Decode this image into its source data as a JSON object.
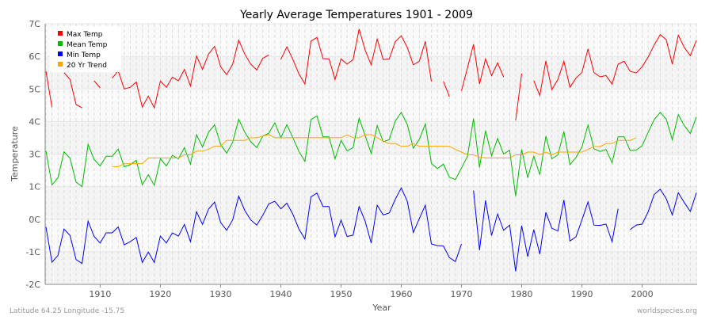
{
  "chart_data": {
    "type": "line",
    "title": "Yearly Average Temperatures 1901 - 2009",
    "xlabel": "Year",
    "ylabel": "Temperature",
    "xlim": [
      1901,
      2009
    ],
    "x_ticks": [
      1910,
      1920,
      1930,
      1940,
      1950,
      1960,
      1970,
      1980,
      1990,
      2000
    ],
    "y_ticks": [
      7,
      6,
      5,
      4,
      3,
      1,
      0,
      -1,
      -2
    ],
    "y_tick_labels": [
      "7C",
      "6C",
      "5C",
      "4C",
      "3C",
      "1C",
      "0C",
      "-1C",
      "-2C"
    ],
    "grid": true,
    "legend_position": "top-left",
    "series": [
      {
        "name": "Max Temp",
        "color": "#ff0000",
        "start_year": 1901,
        "values": [
          5.54,
          4.44,
          null,
          5.5,
          5.29,
          4.52,
          4.42,
          null,
          5.25,
          5.03,
          null,
          5.33,
          5.55,
          5.0,
          5.05,
          5.21,
          4.44,
          4.78,
          4.42,
          5.24,
          5.05,
          5.36,
          5.25,
          5.6,
          5.09,
          6.01,
          5.6,
          6.07,
          6.31,
          5.68,
          5.44,
          5.76,
          6.5,
          6.07,
          5.76,
          5.58,
          5.94,
          6.04,
          null,
          5.9,
          6.29,
          5.9,
          5.46,
          5.15,
          6.47,
          6.58,
          5.93,
          5.92,
          5.29,
          5.92,
          5.76,
          5.9,
          6.84,
          6.19,
          5.74,
          6.53,
          5.9,
          5.92,
          6.45,
          6.63,
          6.27,
          5.74,
          5.85,
          6.46,
          5.23,
          null,
          5.23,
          4.76,
          null,
          4.94,
          5.65,
          6.37,
          5.15,
          5.92,
          5.41,
          5.8,
          5.36,
          null,
          4.03,
          5.47,
          null,
          5.25,
          4.8,
          5.86,
          4.98,
          5.29,
          5.85,
          5.05,
          5.33,
          5.51,
          6.23,
          5.5,
          5.37,
          5.41,
          5.15,
          5.76,
          5.85,
          5.54,
          5.49,
          5.68,
          5.98,
          6.35,
          6.67,
          6.51,
          5.76,
          6.65,
          6.27,
          6.02,
          6.49
        ]
      },
      {
        "name": "Mean Temp",
        "color": "#00bb00",
        "start_year": 1901,
        "values": [
          3.1,
          1.11,
          1.54,
          3.07,
          2.74,
          1.28,
          1.0,
          3.3,
          2.67,
          2.27,
          2.87,
          2.87,
          3.15,
          2.22,
          2.35,
          2.62,
          1.11,
          1.73,
          1.08,
          2.71,
          2.27,
          2.92,
          2.71,
          3.2,
          2.38,
          3.59,
          3.22,
          3.67,
          3.9,
          3.29,
          3.03,
          3.36,
          4.07,
          3.67,
          3.38,
          3.2,
          3.55,
          3.64,
          3.96,
          3.5,
          3.9,
          3.5,
          3.08,
          2.55,
          4.06,
          4.17,
          3.53,
          3.53,
          2.71,
          3.42,
          3.1,
          3.2,
          4.1,
          3.57,
          3.02,
          3.87,
          3.38,
          3.44,
          4.01,
          4.28,
          3.91,
          3.18,
          3.45,
          3.93,
          2.43,
          2.11,
          2.38,
          1.57,
          1.44,
          2.14,
          2.87,
          4.09,
          2.17,
          3.72,
          2.9,
          3.48,
          3.0,
          3.12,
          0.71,
          3.14,
          1.54,
          2.87,
          1.73,
          3.55,
          2.71,
          2.95,
          3.69,
          2.35,
          2.79,
          3.22,
          3.89,
          3.16,
          3.08,
          3.14,
          2.46,
          3.53,
          3.53,
          3.11,
          3.12,
          3.26,
          3.67,
          4.06,
          4.28,
          4.07,
          3.44,
          4.21,
          3.87,
          3.63,
          4.14
        ]
      },
      {
        "name": "Min Temp",
        "color": "#0000ff",
        "start_year": 1901,
        "values": [
          -0.24,
          -1.32,
          -1.11,
          -0.3,
          -0.5,
          -1.24,
          -1.36,
          -0.06,
          -0.53,
          -0.73,
          -0.42,
          -0.42,
          -0.24,
          -0.79,
          -0.69,
          -0.56,
          -1.33,
          -1.01,
          -1.33,
          -0.52,
          -0.73,
          -0.42,
          -0.52,
          -0.16,
          -0.69,
          0.23,
          -0.16,
          0.31,
          0.53,
          -0.1,
          -0.34,
          -0.02,
          0.71,
          0.27,
          -0.02,
          -0.18,
          0.12,
          0.47,
          0.55,
          0.32,
          0.49,
          0.15,
          -0.3,
          -0.61,
          0.69,
          0.8,
          0.39,
          0.39,
          -0.54,
          -0.03,
          -0.53,
          -0.49,
          0.39,
          -0.06,
          -0.73,
          0.43,
          0.13,
          0.19,
          0.61,
          0.96,
          0.55,
          -0.41,
          0.02,
          0.43,
          -0.76,
          -0.81,
          -0.82,
          -1.18,
          -1.3,
          -0.76,
          null,
          0.88,
          -0.95,
          0.58,
          -0.5,
          0.16,
          -0.34,
          -0.18,
          -1.6,
          -0.2,
          -1.15,
          -0.32,
          -1.07,
          0.21,
          -0.28,
          -0.36,
          0.59,
          -0.67,
          -0.54,
          -0.02,
          0.53,
          -0.18,
          -0.19,
          -0.15,
          -0.69,
          0.32,
          null,
          -0.32,
          -0.18,
          -0.15,
          0.23,
          0.76,
          0.92,
          0.63,
          0.13,
          0.81,
          0.51,
          0.24,
          0.81
        ]
      },
      {
        "name": "20 Yr Trend",
        "color": "#ffa500",
        "start_year": 1912,
        "values": [
          2.22,
          2.22,
          2.41,
          2.41,
          2.41,
          2.41,
          2.76,
          2.76,
          2.76,
          2.76,
          2.76,
          2.76,
          2.95,
          2.95,
          3.09,
          3.09,
          3.15,
          3.24,
          3.24,
          3.42,
          3.42,
          3.42,
          3.42,
          3.5,
          3.5,
          3.55,
          3.6,
          3.5,
          3.5,
          3.5,
          3.5,
          3.5,
          3.5,
          3.5,
          3.5,
          3.5,
          3.5,
          3.5,
          3.5,
          3.59,
          3.5,
          3.5,
          3.59,
          3.6,
          3.5,
          3.4,
          3.32,
          3.32,
          3.24,
          3.24,
          3.32,
          3.24,
          3.24,
          3.24,
          3.24,
          3.24,
          3.24,
          3.14,
          3.06,
          2.95,
          2.95,
          2.82,
          2.76,
          2.76,
          2.76,
          2.76,
          2.76,
          2.95,
          2.95,
          3.06,
          3.06,
          2.95,
          3.06,
          2.95,
          3.06,
          3.06,
          3.06,
          3.06,
          3.06,
          3.14,
          3.23,
          3.23,
          3.32,
          3.32,
          3.42,
          3.42,
          3.42,
          3.5
        ]
      }
    ]
  },
  "footer": {
    "location": "Latitude 64.25 Longitude -15.75",
    "source": "worldspecies.org"
  }
}
